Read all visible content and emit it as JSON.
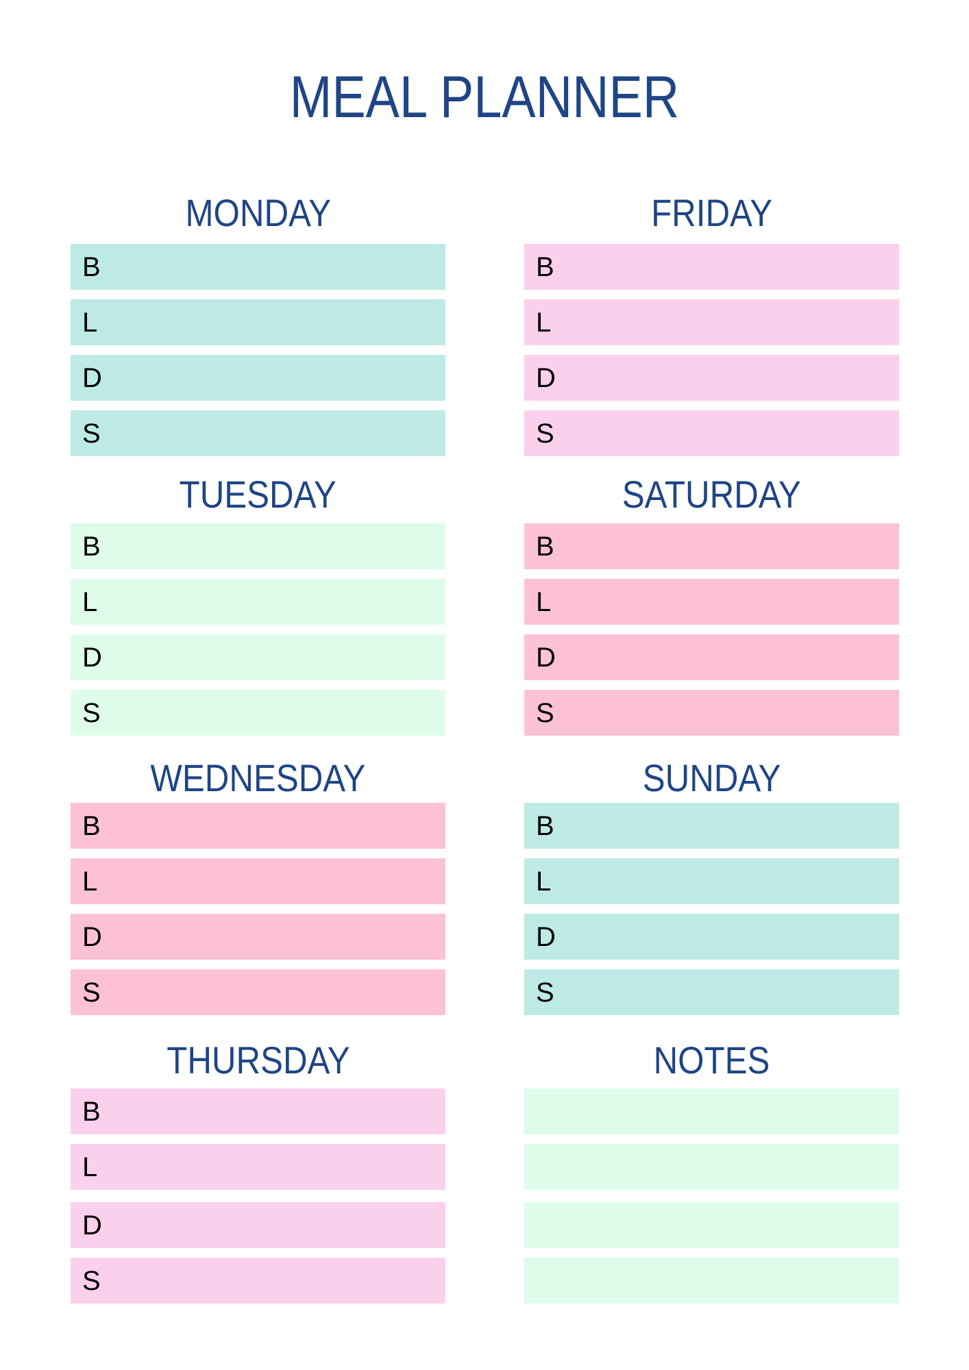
{
  "title": "MEAL PLANNER",
  "colors": {
    "heading": "#1F4585",
    "teal": "#BDEAE4",
    "mint": "#DFFCEB",
    "pink": "#FCC2D3",
    "light_pink": "#FBD0EC"
  },
  "columns": [
    {
      "sections": [
        {
          "title": "MONDAY",
          "color": "teal",
          "rows": [
            "B",
            "L",
            "D",
            "S"
          ]
        },
        {
          "title": "TUESDAY",
          "color": "mint",
          "rows": [
            "B",
            "L",
            "D",
            "S"
          ]
        },
        {
          "title": "WEDNESDAY",
          "color": "pink",
          "rows": [
            "B",
            "L",
            "D",
            "S"
          ]
        },
        {
          "title": "THURSDAY",
          "color": "light_pink",
          "rows": [
            "B",
            "L",
            "D",
            "S"
          ]
        }
      ]
    },
    {
      "sections": [
        {
          "title": "FRIDAY",
          "color": "light_pink",
          "rows": [
            "B",
            "L",
            "D",
            "S"
          ]
        },
        {
          "title": "SATURDAY",
          "color": "pink",
          "rows": [
            "B",
            "L",
            "D",
            "S"
          ]
        },
        {
          "title": "SUNDAY",
          "color": "teal",
          "rows": [
            "B",
            "L",
            "D",
            "S"
          ]
        },
        {
          "title": "NOTES",
          "color": "mint",
          "rows": [
            "",
            "",
            "",
            ""
          ]
        }
      ]
    }
  ]
}
